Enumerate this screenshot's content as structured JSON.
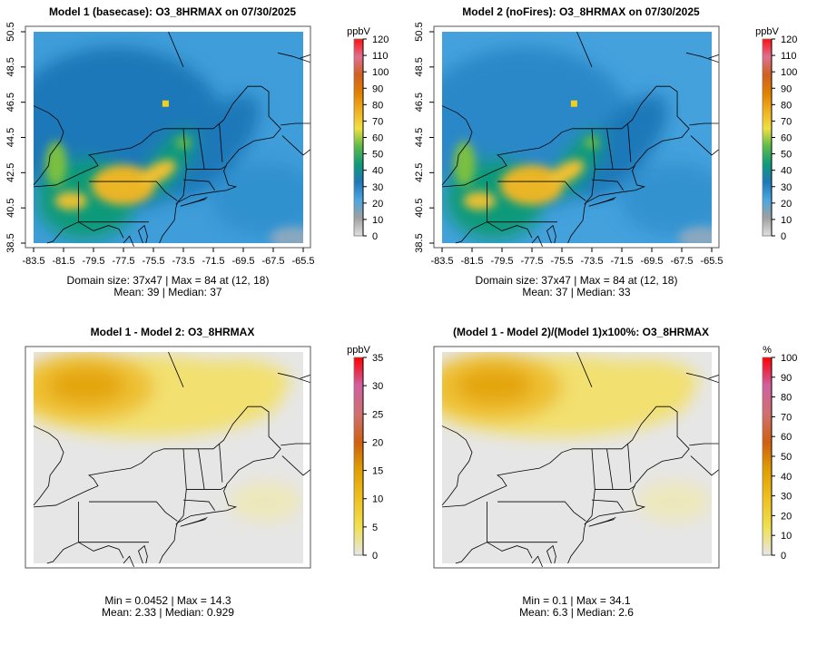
{
  "panels": [
    {
      "title": "Model 1 (basecase): O3_8HRMAX on 07/30/2025",
      "unit": "ppbV",
      "colorbar_ticks": [
        "0",
        "10",
        "20",
        "30",
        "40",
        "50",
        "60",
        "70",
        "80",
        "90",
        "100",
        "110",
        "120"
      ],
      "stats_line1": "Domain size: 37x47 | Max = 84 at (12, 18)",
      "stats_line2": "Mean: 39 |  Median: 37",
      "scheme": "ozone",
      "show_axes": true
    },
    {
      "title": "Model 2 (noFires): O3_8HRMAX on 07/30/2025",
      "unit": "ppbV",
      "colorbar_ticks": [
        "0",
        "10",
        "20",
        "30",
        "40",
        "50",
        "60",
        "70",
        "80",
        "90",
        "100",
        "110",
        "120"
      ],
      "stats_line1": "Domain size: 37x47 | Max = 84 at (12, 18)",
      "stats_line2": "Mean: 37 |  Median: 33",
      "scheme": "ozone2",
      "show_axes": true
    },
    {
      "title": "Model 1 - Model 2: O3_8HRMAX",
      "unit": "ppbV",
      "colorbar_ticks": [
        "0",
        "5",
        "10",
        "15",
        "20",
        "25",
        "30",
        "35"
      ],
      "stats_line1": "Min = 0.0452 | Max = 14.3",
      "stats_line2": "Mean: 2.33 |  Median: 0.929",
      "scheme": "diff",
      "show_axes": false
    },
    {
      "title": "(Model 1 - Model 2)/(Model 1)x100%: O3_8HRMAX",
      "unit": "%",
      "colorbar_ticks": [
        "0",
        "10",
        "20",
        "30",
        "40",
        "50",
        "60",
        "70",
        "80",
        "90",
        "100"
      ],
      "stats_line1": "Min = 0.1 | Max = 34.1",
      "stats_line2": "Mean: 6.3 |  Median: 2.6",
      "scheme": "diff",
      "show_axes": false
    }
  ],
  "axes": {
    "x_ticks": [
      "-83.5",
      "-81.5",
      "-79.5",
      "-77.5",
      "-75.5",
      "-73.5",
      "-71.5",
      "-69.5",
      "-67.5",
      "-65.5"
    ],
    "y_ticks": [
      "38.5",
      "40.5",
      "42.5",
      "44.5",
      "46.5",
      "48.5",
      "50.5"
    ]
  },
  "colors": {
    "ozone_scale": [
      "#e0e0e0",
      "#a0a0a0",
      "#4aa8e0",
      "#1f78b8",
      "#0f9a7a",
      "#5cb94a",
      "#f0e040",
      "#f0b020",
      "#e08000",
      "#d06020",
      "#e07090",
      "#ff1010"
    ],
    "diff_scale": [
      "#e6e6e6",
      "#f0e050",
      "#f0c020",
      "#e0a000",
      "#d06010",
      "#d07070",
      "#d060a0",
      "#ff0000"
    ]
  }
}
